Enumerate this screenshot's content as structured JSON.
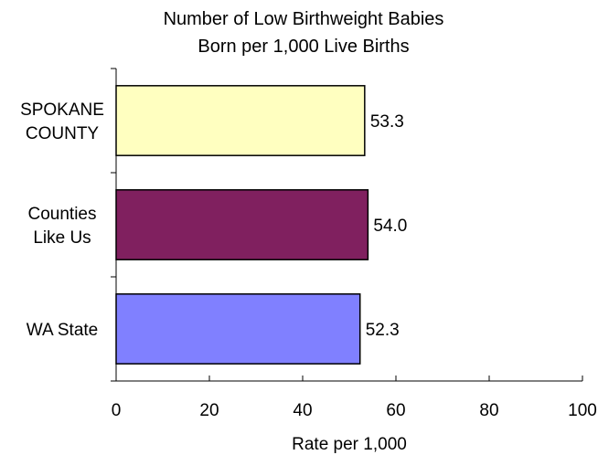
{
  "chart_data": {
    "type": "bar",
    "orientation": "horizontal",
    "title_lines": [
      "Number of Low Birthweight Babies",
      "Born per 1,000 Live Births"
    ],
    "xlabel": "Rate per 1,000",
    "ylabel": "",
    "xlim": [
      0,
      100
    ],
    "x_ticks": [
      "0",
      "20",
      "40",
      "60",
      "80",
      "100"
    ],
    "categories": [
      {
        "label_lines": [
          "SPOKANE",
          "COUNTY"
        ],
        "value": 53.3,
        "value_label": "53.3",
        "color": "#ffffc0"
      },
      {
        "label_lines": [
          "Counties",
          "Like Us"
        ],
        "value": 54.0,
        "value_label": "54.0",
        "color": "#80205f"
      },
      {
        "label_lines": [
          "WA State"
        ],
        "value": 52.3,
        "value_label": "52.3",
        "color": "#8080ff"
      }
    ],
    "grid": false,
    "legend": "none"
  }
}
